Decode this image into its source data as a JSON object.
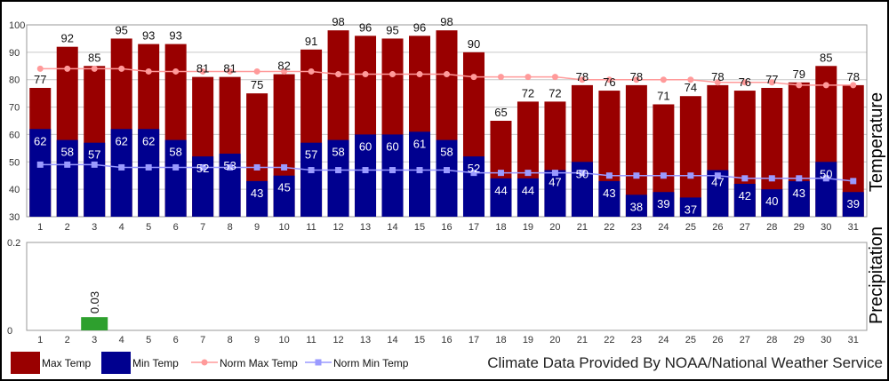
{
  "chart_data": {
    "type": "bar",
    "categories": [
      "1",
      "2",
      "3",
      "4",
      "5",
      "6",
      "7",
      "8",
      "9",
      "10",
      "11",
      "12",
      "13",
      "14",
      "15",
      "16",
      "17",
      "18",
      "19",
      "20",
      "21",
      "22",
      "23",
      "24",
      "25",
      "26",
      "27",
      "28",
      "29",
      "30",
      "31"
    ],
    "series": [
      {
        "name": "Max Temp",
        "type": "bar",
        "values": [
          77,
          92,
          85,
          95,
          93,
          93,
          81,
          81,
          75,
          82,
          91,
          98,
          96,
          95,
          96,
          98,
          90,
          65,
          72,
          72,
          78,
          76,
          78,
          71,
          74,
          78,
          76,
          77,
          79,
          85,
          78
        ]
      },
      {
        "name": "Min Temp",
        "type": "bar",
        "values": [
          62,
          58,
          57,
          62,
          62,
          58,
          52,
          53,
          43,
          45,
          57,
          58,
          60,
          60,
          61,
          58,
          52,
          44,
          44,
          47,
          50,
          43,
          38,
          39,
          37,
          47,
          42,
          40,
          43,
          50,
          39
        ]
      },
      {
        "name": "Norm Max Temp",
        "type": "line",
        "values": [
          84,
          84,
          84,
          84,
          83,
          83,
          83,
          83,
          83,
          83,
          83,
          82,
          82,
          82,
          82,
          82,
          81,
          81,
          81,
          81,
          80,
          80,
          80,
          80,
          80,
          79,
          79,
          79,
          78,
          78,
          78
        ]
      },
      {
        "name": "Norm Min Temp",
        "type": "line",
        "values": [
          49,
          49,
          49,
          48,
          48,
          48,
          48,
          48,
          48,
          48,
          47,
          47,
          47,
          47,
          47,
          47,
          46,
          46,
          46,
          46,
          46,
          45,
          45,
          45,
          45,
          45,
          44,
          44,
          44,
          44,
          43
        ]
      },
      {
        "name": "Precipitation",
        "type": "bar",
        "values": [
          0,
          0,
          0.03,
          0,
          0,
          0,
          0,
          0,
          0,
          0,
          0,
          0,
          0,
          0,
          0,
          0,
          0,
          0,
          0,
          0,
          0,
          0,
          0,
          0,
          0,
          0,
          0,
          0,
          0,
          0,
          0
        ]
      }
    ],
    "temp_axis": {
      "label": "Temperature",
      "ylim": [
        30,
        100
      ],
      "ticks": [
        "30",
        "40",
        "50",
        "60",
        "70",
        "80",
        "90",
        "100"
      ]
    },
    "precip_axis": {
      "label": "Precipitation",
      "ylim": [
        0,
        0.2
      ],
      "ticks": [
        "0",
        "0.2"
      ]
    },
    "precip_labels": [
      {
        "day": "3",
        "text": "0.03"
      }
    ],
    "grid": true,
    "legend_placement": "bottom-left"
  },
  "legend": [
    {
      "label": "Max Temp",
      "kind": "box",
      "color": "#990000"
    },
    {
      "label": "Min Temp",
      "kind": "box",
      "color": "#00008f"
    },
    {
      "label": "Norm Max Temp",
      "kind": "line",
      "color": "#ff9a9a"
    },
    {
      "label": "Norm Min Temp",
      "kind": "line",
      "color": "#9a9aff"
    }
  ],
  "credit": "Climate Data Provided By NOAA/National Weather Service",
  "colors": {
    "max": "#990000",
    "min": "#00008f",
    "norm_max": "#ff9a9a",
    "norm_min": "#9a9aff",
    "precip": "#2ea02e",
    "grid": "#c8c8c8"
  }
}
